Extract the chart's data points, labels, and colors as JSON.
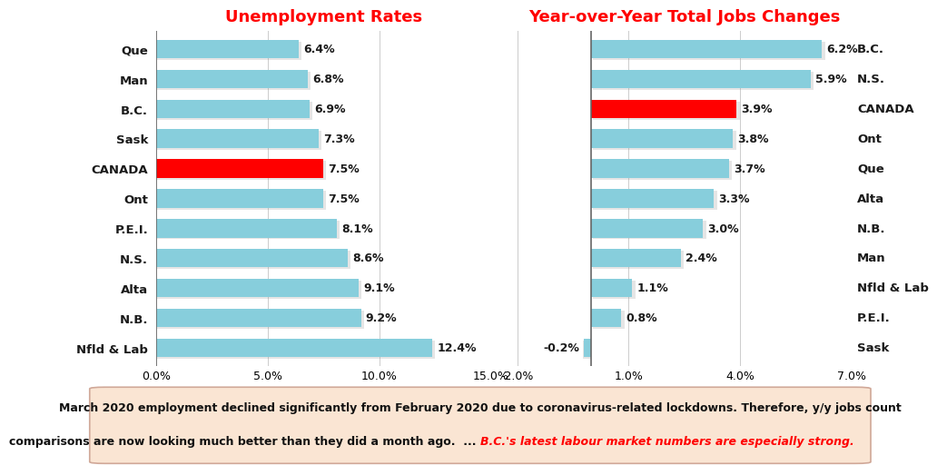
{
  "unemp_labels": [
    "Que",
    "Man",
    "B.C.",
    "Sask",
    "CANADA",
    "Ont",
    "P.E.I.",
    "N.S.",
    "Alta",
    "N.B.",
    "Nfld & Lab"
  ],
  "unemp_values": [
    6.4,
    6.8,
    6.9,
    7.3,
    7.5,
    7.5,
    8.1,
    8.6,
    9.1,
    9.2,
    12.4
  ],
  "unemp_colors": [
    "#87CEDC",
    "#87CEDC",
    "#87CEDC",
    "#87CEDC",
    "#FF0000",
    "#87CEDC",
    "#87CEDC",
    "#87CEDC",
    "#87CEDC",
    "#87CEDC",
    "#87CEDC"
  ],
  "unemp_xlim": [
    0,
    15.0
  ],
  "unemp_xticks": [
    0.0,
    5.0,
    10.0,
    15.0
  ],
  "unemp_xtick_labels": [
    "0.0%",
    "5.0%",
    "10.0%",
    "15.0%"
  ],
  "unemp_title": "Unemployment Rates",
  "yoy_labels": [
    "B.C.",
    "N.S.",
    "CANADA",
    "Ont",
    "Que",
    "Alta",
    "N.B.",
    "Man",
    "Nfld & Lab",
    "P.E.I.",
    "Sask"
  ],
  "yoy_values": [
    6.2,
    5.9,
    3.9,
    3.8,
    3.7,
    3.3,
    3.0,
    2.4,
    1.1,
    0.8,
    -0.2
  ],
  "yoy_colors": [
    "#87CEDC",
    "#87CEDC",
    "#FF0000",
    "#87CEDC",
    "#87CEDC",
    "#87CEDC",
    "#87CEDC",
    "#87CEDC",
    "#87CEDC",
    "#87CEDC",
    "#87CEDC"
  ],
  "yoy_xlim": [
    -2.0,
    7.0
  ],
  "yoy_xticks": [
    -2.0,
    1.0,
    4.0,
    7.0
  ],
  "yoy_xtick_labels": [
    "-2.0%",
    "1.0%",
    "4.0%",
    "7.0%"
  ],
  "yoy_title": "Year-over-Year Total Jobs Changes",
  "title_color": "#FF0000",
  "title_fontsize": 13,
  "bar_height": 0.62,
  "value_fontsize": 9,
  "label_fontsize": 9.5,
  "tick_fontsize": 9,
  "label_color": "#1a1a1a",
  "bg_color": "#FFFFFF",
  "footer_bg": "#FAE5D3",
  "footer_text1": "March 2020 employment declined significantly from February 2020 due to coronavirus-related lockdowns. Therefore, y/y jobs count",
  "footer_text2": "comparisons are now looking much better than they did a month ago.  ... ",
  "footer_highlight": "B.C.'s latest labour market numbers are especially strong.",
  "footer_fontsize": 9.0
}
